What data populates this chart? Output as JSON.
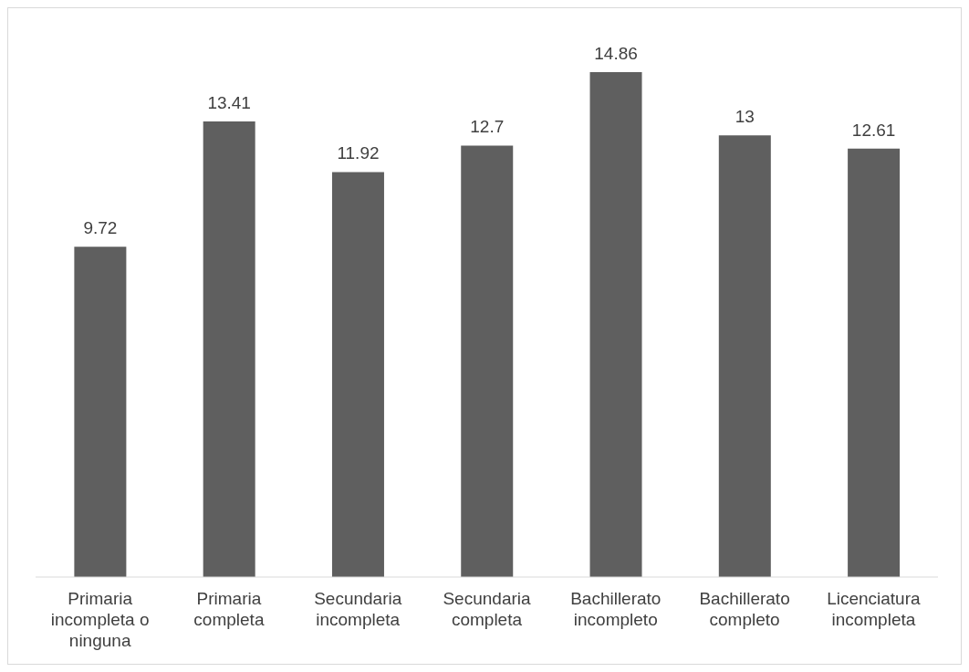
{
  "chart_data": {
    "type": "bar",
    "categories": [
      "Primaria incompleta o ninguna",
      "Primaria completa",
      "Secundaria incompleta",
      "Secundaria completa",
      "Bachillerato incompleto",
      "Bachillerato completo",
      "Licenciatura incompleta"
    ],
    "values": [
      9.72,
      13.41,
      11.92,
      12.7,
      14.86,
      13,
      12.61
    ],
    "color": "#5f5f5f",
    "data_labels": true
  }
}
